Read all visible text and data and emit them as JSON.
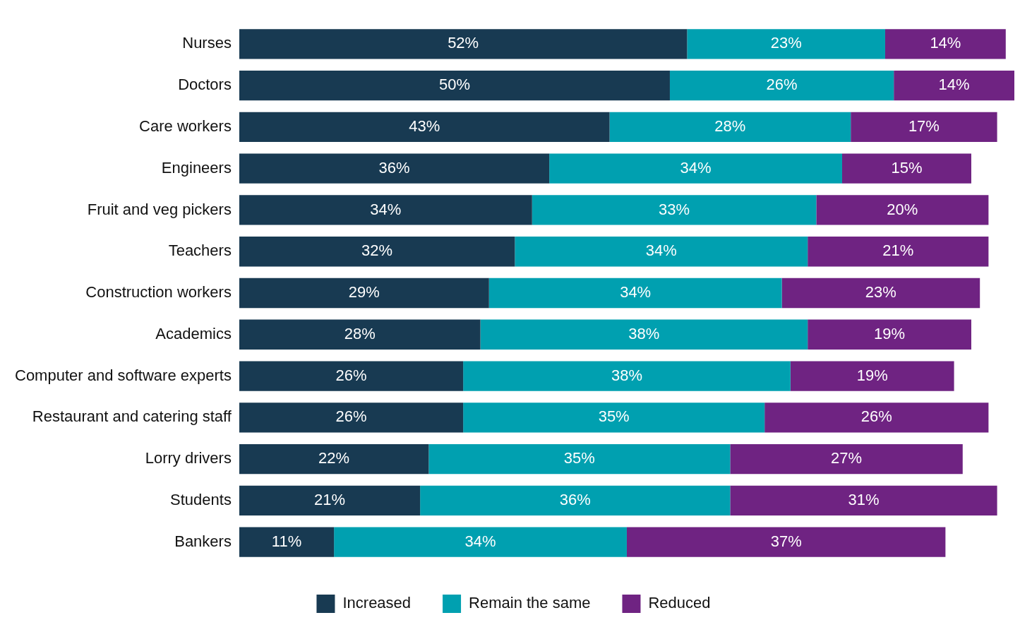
{
  "chart_data": {
    "type": "bar",
    "orientation": "horizontal",
    "stacked": true,
    "legend": "bottom",
    "categories": [
      "Nurses",
      "Doctors",
      "Care workers",
      "Engineers",
      "Fruit and veg pickers",
      "Teachers",
      "Construction workers",
      "Academics",
      "Computer and software experts",
      "Restaurant and catering staff",
      "Lorry drivers",
      "Students",
      "Bankers"
    ],
    "series": [
      {
        "name": "Increased",
        "color": "#183a52",
        "values": [
          52,
          50,
          43,
          36,
          34,
          32,
          29,
          28,
          26,
          26,
          22,
          21,
          11
        ],
        "value_labels": [
          "52%",
          "50%",
          "43%",
          "36%",
          "34%",
          "32%",
          "29%",
          "28%",
          "26%",
          "26%",
          "22%",
          "21%",
          "11%"
        ]
      },
      {
        "name": "Remain the same",
        "color": "#00a0b0",
        "values": [
          23,
          26,
          28,
          34,
          33,
          34,
          34,
          38,
          38,
          35,
          35,
          36,
          34
        ],
        "value_labels": [
          "23%",
          "26%",
          "28%",
          "34%",
          "33%",
          "34%",
          "34%",
          "38%",
          "38%",
          "35%",
          "35%",
          "36%",
          "34%"
        ]
      },
      {
        "name": "Reduced",
        "color": "#6f2382",
        "values": [
          14,
          14,
          17,
          15,
          20,
          21,
          23,
          19,
          19,
          26,
          27,
          31,
          37
        ],
        "value_labels": [
          "14%",
          "14%",
          "17%",
          "15%",
          "20%",
          "21%",
          "23%",
          "19%",
          "19%",
          "26%",
          "27%",
          "31%",
          "37%"
        ]
      }
    ]
  }
}
